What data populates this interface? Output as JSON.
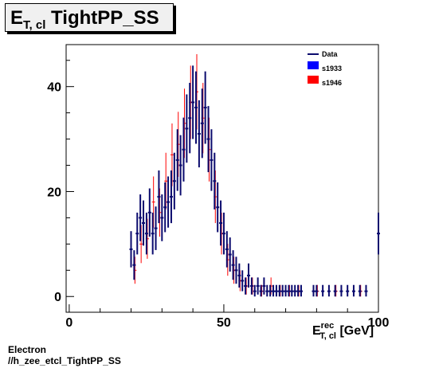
{
  "title": {
    "main": "E",
    "sub": "T, cl",
    "rest": "TightPP_SS"
  },
  "footer": {
    "line1": "Electron",
    "line2": "//h_zee_etcl_TightPP_SS"
  },
  "chart_data": {
    "type": "scatter",
    "xlabel": {
      "main": "E",
      "sup": "rec",
      "sub": "T, cl",
      "unit": "[GeV]"
    },
    "xlim": [
      -1,
      100
    ],
    "ylim": [
      -3,
      48
    ],
    "xticks": [
      0,
      50,
      100
    ],
    "yticks": [
      0,
      20,
      40
    ],
    "legend": {
      "placement": "top-right",
      "entries": [
        "Data",
        "s1933",
        "s1946"
      ]
    },
    "colors": {
      "Data": "#0b0b6e",
      "s1933": "#0000ff",
      "s1946": "#ff0000"
    },
    "series": [
      {
        "name": "Data",
        "points": [
          [
            20,
            9
          ],
          [
            21,
            6
          ],
          [
            22,
            12
          ],
          [
            23,
            15
          ],
          [
            24,
            14
          ],
          [
            25,
            12
          ],
          [
            26,
            16
          ],
          [
            27,
            12
          ],
          [
            28,
            13
          ],
          [
            29,
            19
          ],
          [
            30,
            15
          ],
          [
            31,
            17
          ],
          [
            32,
            18
          ],
          [
            33,
            19
          ],
          [
            34,
            22
          ],
          [
            35,
            26
          ],
          [
            36,
            25
          ],
          [
            37,
            28
          ],
          [
            38,
            32
          ],
          [
            39,
            34
          ],
          [
            40,
            37
          ],
          [
            41,
            36
          ],
          [
            42,
            31
          ],
          [
            43,
            33
          ],
          [
            44,
            36
          ],
          [
            45,
            30
          ],
          [
            46,
            26
          ],
          [
            47,
            22
          ],
          [
            48,
            17
          ],
          [
            49,
            14
          ],
          [
            50,
            12
          ],
          [
            51,
            9
          ],
          [
            52,
            8
          ],
          [
            53,
            6
          ],
          [
            54,
            5
          ],
          [
            55,
            4
          ],
          [
            56,
            3
          ],
          [
            57,
            2
          ],
          [
            58,
            4
          ],
          [
            59,
            2
          ],
          [
            60,
            1
          ],
          [
            61,
            2
          ],
          [
            62,
            1
          ],
          [
            63,
            2
          ],
          [
            64,
            1
          ],
          [
            65,
            1
          ],
          [
            66,
            1
          ],
          [
            67,
            1
          ],
          [
            68,
            1
          ],
          [
            69,
            1
          ],
          [
            70,
            1
          ],
          [
            71,
            1
          ],
          [
            72,
            1
          ],
          [
            73,
            1
          ],
          [
            74,
            1
          ],
          [
            75,
            1
          ],
          [
            79,
            1
          ],
          [
            80,
            1
          ],
          [
            82,
            1
          ],
          [
            84,
            1
          ],
          [
            86,
            1
          ],
          [
            88,
            1
          ],
          [
            90,
            1
          ],
          [
            92,
            1
          ],
          [
            94,
            1
          ],
          [
            96,
            1
          ],
          [
            100,
            12
          ]
        ]
      },
      {
        "name": "s1946",
        "points": [
          [
            21,
            5
          ],
          [
            23,
            10
          ],
          [
            25,
            11
          ],
          [
            27,
            18
          ],
          [
            29,
            16
          ],
          [
            31,
            22
          ],
          [
            33,
            27
          ],
          [
            35,
            29
          ],
          [
            37,
            33
          ],
          [
            39,
            37
          ],
          [
            41,
            39
          ],
          [
            43,
            34
          ],
          [
            45,
            28
          ],
          [
            47,
            19
          ],
          [
            49,
            12
          ],
          [
            51,
            7
          ],
          [
            53,
            5
          ],
          [
            55,
            3
          ],
          [
            57,
            2
          ],
          [
            59,
            2
          ],
          [
            62,
            1
          ],
          [
            65,
            2
          ],
          [
            68,
            1
          ],
          [
            71,
            1
          ],
          [
            74,
            1
          ],
          [
            80,
            1
          ],
          [
            86,
            1
          ],
          [
            94,
            1
          ]
        ]
      }
    ]
  }
}
